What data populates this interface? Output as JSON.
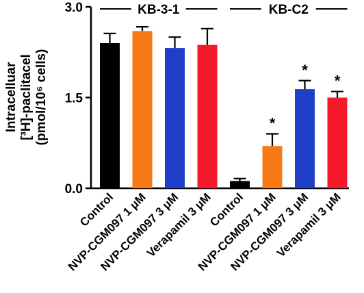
{
  "chart_data": {
    "type": "bar",
    "ylabel_lines": [
      "Intracelluar",
      "[³H]-paclitacel",
      "(pmol/10⁶ cells)"
    ],
    "ylim": [
      0,
      3.0
    ],
    "yticks": [
      "0.0",
      "1.5",
      "3.0"
    ],
    "grid": false,
    "groups": [
      {
        "name": "KB-3-1",
        "categories": [
          "Control",
          "NVP-CGM097 1 μM",
          "NVP-CGM097 3 μM",
          "Verapamil 3 μM"
        ],
        "values": [
          2.4,
          2.6,
          2.32,
          2.37
        ],
        "errors": [
          0.16,
          0.07,
          0.18,
          0.27
        ],
        "significant": [
          false,
          false,
          false,
          false
        ]
      },
      {
        "name": "KB-C2",
        "categories": [
          "Control",
          "NVP-CGM097 1 μM",
          "NVP-CGM097 3 μM",
          "Verapamil 3 μM"
        ],
        "values": [
          0.12,
          0.7,
          1.64,
          1.5
        ],
        "errors": [
          0.04,
          0.2,
          0.14,
          0.1
        ],
        "significant": [
          false,
          true,
          true,
          true
        ]
      }
    ],
    "bar_colors": [
      "#000000",
      "#f77a17",
      "#1f3fc8",
      "#f4192b"
    ],
    "significance_marker": "*"
  }
}
